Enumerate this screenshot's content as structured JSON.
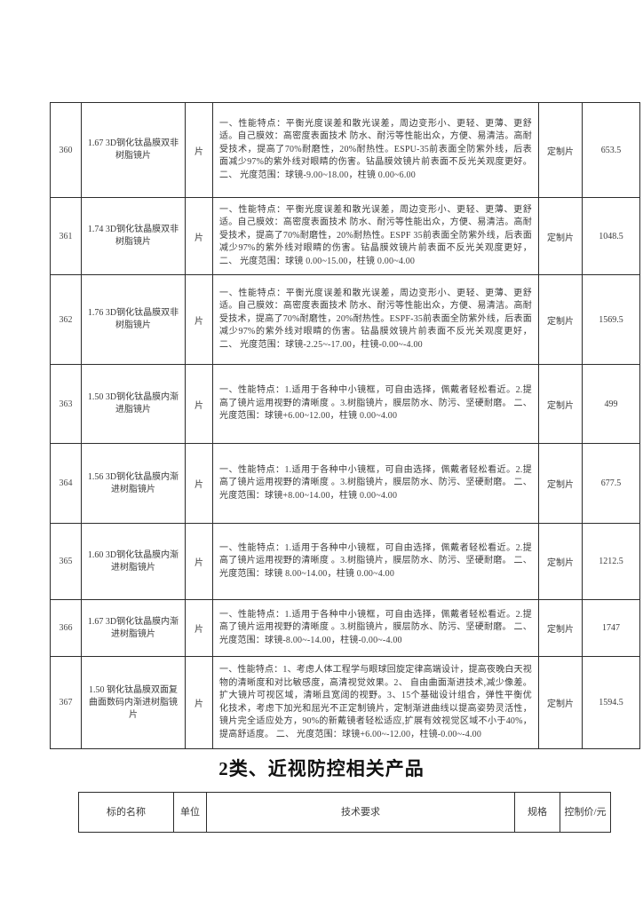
{
  "table1": {
    "rows": [
      {
        "no": "360",
        "name": "1.67 3D钢化钛晶膜双非树脂镜片",
        "unit": "片",
        "tech": "一、性能特点：平衡光度误差和散光误差，周边变形小、更轻、更薄、更舒适。自己膜效：高密度表面技术 防水、耐污等性能出众，方便、易清洁。高耐受技术，提高了70%耐磨性，20%耐热性。ESPU-35前表面全防紫外线，后表面减少97%的紫外线对眼睛的伤害。钻晶膜效镜片前表面不反光关观度更好。二、 光度范围：球镜-9.00~18.00，柱镜 0.00~6.00",
        "spec": "定制片",
        "price": "653.5"
      },
      {
        "no": "361",
        "name": "1.74 3D钢化钛晶膜双非树脂镜片",
        "unit": "片",
        "tech": "一、性能特点：平衡光度误差和散光误差，周边变形小、更轻、更薄、更舒适。自己膜效：高密度表面技术 防水、耐污等性能出众，方便、易清洁。高耐受技术，提高了70%耐磨性，20%耐热性。ESPF 35前表面全防紫外线，后表面减少97%的紫外线对眼睛的伤害。钻晶膜效镜片前表面不反光关观度更好，二、 光度范围：球镜 0.00~15.00，柱镜 0.00~4.00",
        "spec": "定制片",
        "price": "1048.5"
      },
      {
        "no": "362",
        "name": "1.76 3D钢化钛晶膜双非树脂镜片",
        "unit": "片",
        "tech": "一、性能特点：平衡光度误差和散光误差，周边变形小、更轻、更薄、更舒适。自己膜效：高密度表面技术 防水、耐污等性能出众，方便、易清洁。高耐受技术，提高了70%耐磨性，20%耐热性。ESPF-35前表面全防紫外线，后表面减少97%的紫外线对眼睛的伤害。钻晶膜效镜片前表面不反光关观度更好，二、 光度范围：球镜-2.25~-17.00，柱镜-0.00~-4.00",
        "spec": "定制片",
        "price": "1569.5"
      },
      {
        "no": "363",
        "name": "1.50 3D钢化钛晶膜内渐进脂镜片",
        "unit": "片",
        "tech": "一、性能特点：1.适用于各种中小镜框，可自由选择，佩戴者轻松看近。2.提高了镜片运用视野的清晰度 。3.树脂镜片，膜层防水、防污、坚硬耐磨。 二、光度范围：球镜+6.00~12.00，柱镜 0.00~4.00",
        "spec": "定制片",
        "price": "499"
      },
      {
        "no": "364",
        "name": "1.56 3D钢化钛晶膜内渐进树脂镜片",
        "unit": "片",
        "tech": "一、性能特点：1.适用于各种中小镜框，可自由选择，佩戴者轻松看近。2.提高了镜片运用视野的清晰度 。3.树脂镜片，膜层防水、防污、坚硬耐磨。 二、光度范围：球镜+8.00~14.00，柱镜 0.00~4.00",
        "spec": "定制片",
        "price": "677.5"
      },
      {
        "no": "365",
        "name": "1.60 3D钢化钛晶膜内渐进树脂镜片",
        "unit": "片",
        "tech": "一、性能特点：1.适用于各种中小镜框，可自由选择，佩戴者轻松看近。2.提高了镜片运用视野的清晰度 。3.树脂镜片，膜层防水、防污、坚硬耐磨。 二、 光度范围：球镜 8.00~14.00，柱镜 0.00~4.00",
        "spec": "定制片",
        "price": "1212.5"
      },
      {
        "no": "366",
        "name": "1.67 3D钢化钛晶膜内渐进树脂镜片",
        "unit": "片",
        "tech": "一、性能特点：1.适用于各种中小镜框，可自由选择，佩戴者轻松看近。2.提高了镜片运用视野的清晰度 。3.树脂镜片，膜层防水、防污、坚硬耐磨。 二、 光度范围：球镜-8.00~-14.00，柱镜-0.00~-4.00",
        "spec": "定制片",
        "price": "1747"
      },
      {
        "no": "367",
        "name": "1.50 钢化钛晶膜双面复曲面数码内渐进树脂镜片",
        "unit": "片",
        "tech": "一、性能特点：1、考虑人体工程学与眼球回旋定律高端设计，提高夜晚白天视物的清晰度和对比敏感度，高清视觉效果。2、 自由曲面渐进技术,减少像差。扩大镜片可视区域，清晰且宽阔的视野。3、15个基础设计组合，弹性平衡优化技术，考虑下加光和屈光不正定制镜片，定制渐进曲线以提高姿势灵活性，镜片完全适应处方，90%的新戴镜者轻松适应,扩展有效视觉区域不小于40%，提高舒适度。 二、 光度范围：球镜+6.00~-12.00，柱镜-0.00~-4.00",
        "spec": "定制片",
        "price": "1594.5"
      }
    ]
  },
  "section2": {
    "heading": "2类、近视防控相关产品"
  },
  "table2": {
    "headers": [
      "标的名称",
      "单位",
      "技术要求",
      "规格",
      "控制价/元"
    ]
  }
}
